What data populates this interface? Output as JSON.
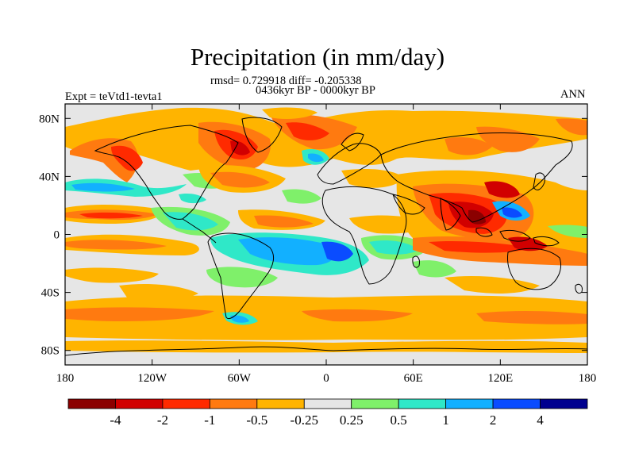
{
  "title": "Precipitation (in mm/day)",
  "stats_line": "rmsd= 0.729918 diff= -0.205338",
  "period_line": "0436kyr BP - 0000kyr BP",
  "experiment": "Expt = teVtd1-tevta1",
  "season": "ANN",
  "chart_data": {
    "type": "map_contour_fill",
    "variable": "Precipitation difference",
    "units": "mm/day",
    "x_axis": {
      "ticks": [
        "180",
        "120W",
        "60W",
        "0",
        "60E",
        "120E",
        "180"
      ],
      "range_lon": [
        -180,
        180
      ]
    },
    "y_axis": {
      "ticks": [
        "80N",
        "40N",
        "0",
        "40S",
        "80S"
      ],
      "range_lat": [
        -90,
        90
      ]
    },
    "colorbar": {
      "levels": [
        "-4",
        "-2",
        "-1",
        "-0.5",
        "-0.25",
        "0.25",
        "0.5",
        "1",
        "2",
        "4"
      ],
      "colors": [
        "#8b0000",
        "#d10000",
        "#ff2a00",
        "#ff7a10",
        "#ffb400",
        "#e6e6e6",
        "#7ff06a",
        "#2fe8c8",
        "#12b0ff",
        "#0a4cff",
        "#00008f"
      ]
    }
  },
  "colors": {
    "ocean_neutral": "#e6e6e6",
    "coastline": "#000000"
  }
}
